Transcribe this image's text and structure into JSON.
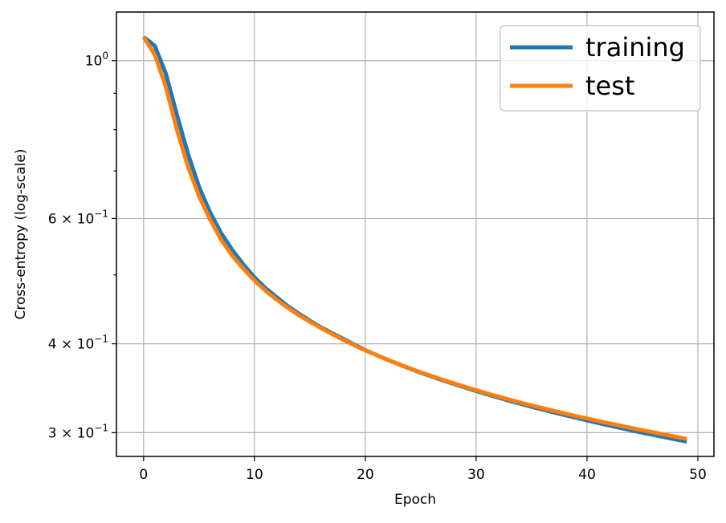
{
  "chart_data": {
    "type": "line",
    "title": "",
    "xlabel": "Epoch",
    "ylabel": "Cross-entropy (log-scale)",
    "yscale": "log",
    "xlim": [
      -2.45,
      51.45
    ],
    "ylim": [
      0.2778,
      1.1708
    ],
    "grid": true,
    "legend_position": "top-right",
    "x_ticks": [
      {
        "value": 0,
        "label": "0"
      },
      {
        "value": 10,
        "label": "10"
      },
      {
        "value": 20,
        "label": "20"
      },
      {
        "value": 30,
        "label": "30"
      },
      {
        "value": 40,
        "label": "40"
      },
      {
        "value": 50,
        "label": "50"
      }
    ],
    "y_ticks": [
      {
        "value": 1.0,
        "label": "10⁰",
        "mantissa": "",
        "base": "10",
        "exp": "0"
      },
      {
        "value": 0.6,
        "label": "6 × 10⁻¹",
        "mantissa": "6",
        "base": "10",
        "exp": "−1"
      },
      {
        "value": 0.4,
        "label": "4 × 10⁻¹",
        "mantissa": "4",
        "base": "10",
        "exp": "−1"
      },
      {
        "value": 0.3,
        "label": "3 × 10⁻¹",
        "mantissa": "3",
        "base": "10",
        "exp": "−1"
      }
    ],
    "y_minor_ticks": [
      0.5,
      0.7,
      0.8,
      0.9
    ],
    "x": [
      0,
      1,
      2,
      3,
      4,
      5,
      6,
      7,
      8,
      9,
      10,
      11,
      12,
      13,
      14,
      15,
      16,
      17,
      18,
      19,
      20,
      21,
      22,
      23,
      24,
      25,
      26,
      27,
      28,
      29,
      30,
      31,
      32,
      33,
      34,
      35,
      36,
      37,
      38,
      39,
      40,
      41,
      42,
      43,
      44,
      45,
      46,
      47,
      48,
      49
    ],
    "series": [
      {
        "name": "training",
        "color": "#1f77b4",
        "values": [
          1.08,
          1.05,
          0.96,
          0.84,
          0.74,
          0.665,
          0.612,
          0.572,
          0.542,
          0.517,
          0.496,
          0.479,
          0.465,
          0.452,
          0.441,
          0.431,
          0.422,
          0.414,
          0.4065,
          0.399,
          0.392,
          0.3857,
          0.3799,
          0.3744,
          0.3692,
          0.3643,
          0.3597,
          0.3553,
          0.3512,
          0.3472,
          0.3433,
          0.3396,
          0.3361,
          0.3327,
          0.3294,
          0.3263,
          0.3233,
          0.3204,
          0.3176,
          0.3149,
          0.3122,
          0.3096,
          0.3071,
          0.3047,
          0.3023,
          0.3,
          0.2978,
          0.2956,
          0.2935,
          0.2914
        ]
      },
      {
        "name": "test",
        "color": "#ff7f0e",
        "values": [
          1.08,
          1.02,
          0.92,
          0.8,
          0.71,
          0.645,
          0.598,
          0.56,
          0.532,
          0.51,
          0.491,
          0.475,
          0.4615,
          0.4495,
          0.439,
          0.4295,
          0.421,
          0.4128,
          0.4052,
          0.3982,
          0.3916,
          0.3856,
          0.3799,
          0.3746,
          0.3696,
          0.3648,
          0.3603,
          0.356,
          0.3519,
          0.348,
          0.3442,
          0.3406,
          0.3372,
          0.3339,
          0.3307,
          0.3277,
          0.3248,
          0.322,
          0.3193,
          0.3166,
          0.3141,
          0.3116,
          0.3092,
          0.3069,
          0.3046,
          0.3024,
          0.3003,
          0.2982,
          0.2961,
          0.2941
        ]
      }
    ]
  }
}
